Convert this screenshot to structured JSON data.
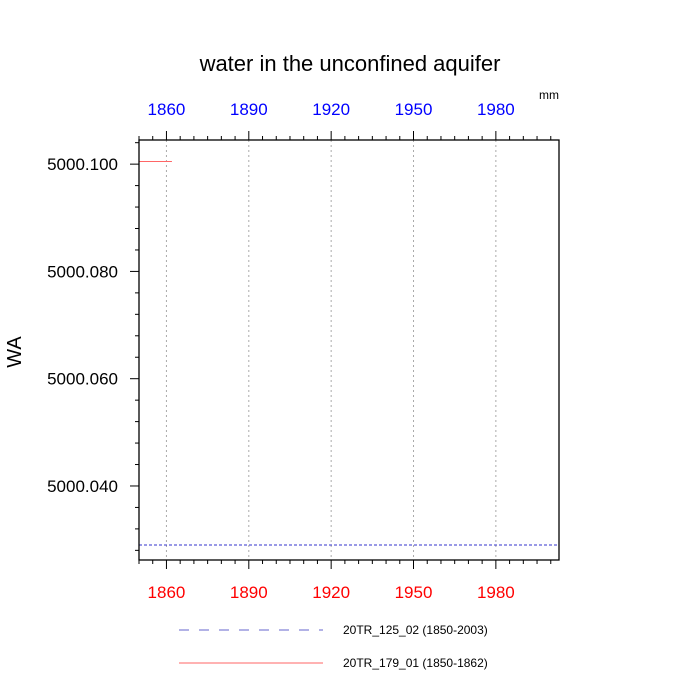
{
  "chart_data": {
    "type": "line",
    "title": "water in the unconfined aquifer",
    "ylabel": "WA",
    "units": "mm",
    "xlim": [
      1850,
      2003
    ],
    "ylim": [
      5000.0262,
      5000.1045
    ],
    "x_ticks": [
      1860,
      1890,
      1920,
      1950,
      1980
    ],
    "y_ticks": [
      "5000.040",
      "5000.060",
      "5000.080",
      "5000.100"
    ],
    "y_tick_values": [
      5000.04,
      5000.06,
      5000.08,
      5000.1
    ],
    "grid": "vertical dotted at x ticks",
    "colors": {
      "top_axis_labels": "#0000ff",
      "bottom_axis_labels": "#ff0000"
    },
    "series": [
      {
        "name": "20TR_125_02 (1850-2003)",
        "color": "#3333cc",
        "dash": "dashed",
        "x": [
          1850,
          2003
        ],
        "y": [
          5000.029,
          5000.029
        ]
      },
      {
        "name": "20TR_179_01 (1850-1862)",
        "color": "#ff6666",
        "dash": "solid",
        "x": [
          1850,
          1862
        ],
        "y": [
          5000.1005,
          5000.1005
        ]
      }
    ]
  }
}
